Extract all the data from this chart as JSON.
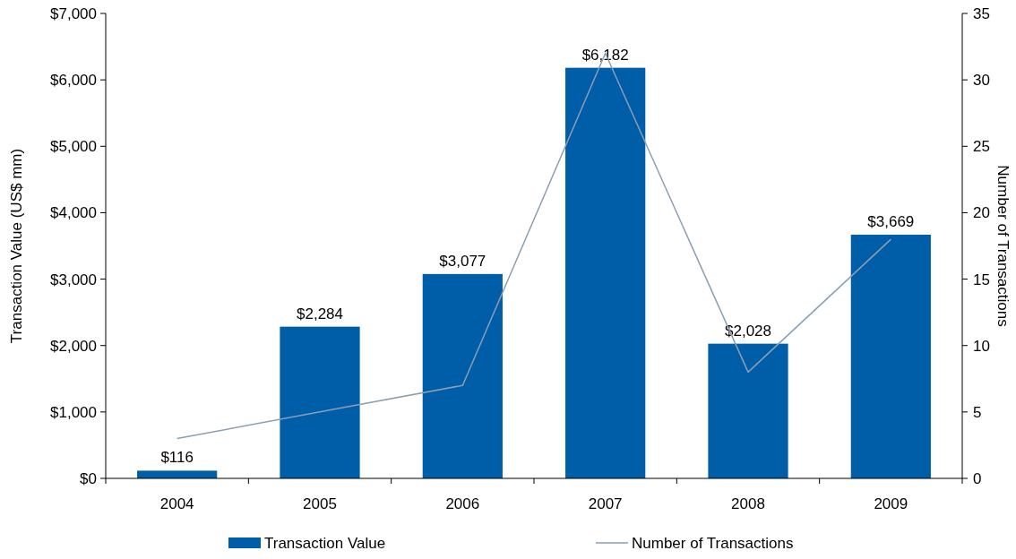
{
  "chart_data": {
    "type": "bar",
    "xlabel": null,
    "ylabel": "Transaction Value (US$ mm)",
    "y2label": "Number of Transactions",
    "categories": [
      "2004",
      "2005",
      "2006",
      "2007",
      "2008",
      "2009"
    ],
    "series": [
      {
        "name": "Transaction Value",
        "color": "#005ea8",
        "values": [
          116,
          2284,
          3077,
          6182,
          2028,
          3669
        ],
        "value_labels": [
          "$116",
          "$2,284",
          "$3,077",
          "$6,182",
          "$2,028",
          "$3,669"
        ]
      },
      {
        "name": "Number of Transactions",
        "type": "line",
        "axis": "y2",
        "color": "#8a9fb3",
        "values": [
          3,
          5,
          7,
          32,
          8,
          18
        ]
      }
    ],
    "ylim": [
      0,
      7000
    ],
    "yticks": [
      {
        "value": 0,
        "label": "$0"
      },
      {
        "value": 1000,
        "label": "$1,000"
      },
      {
        "value": 2000,
        "label": "$2,000"
      },
      {
        "value": 3000,
        "label": "$3,000"
      },
      {
        "value": 4000,
        "label": "$4,000"
      },
      {
        "value": 5000,
        "label": "$5,000"
      },
      {
        "value": 6000,
        "label": "$6,000"
      },
      {
        "value": 7000,
        "label": "$7,000"
      }
    ],
    "y2lim": [
      0,
      35
    ],
    "y2ticks": [
      0,
      5,
      10,
      15,
      20,
      25,
      30,
      35
    ],
    "legend": "bottom",
    "grid": false,
    "marker": "none",
    "line_style": "solid"
  }
}
